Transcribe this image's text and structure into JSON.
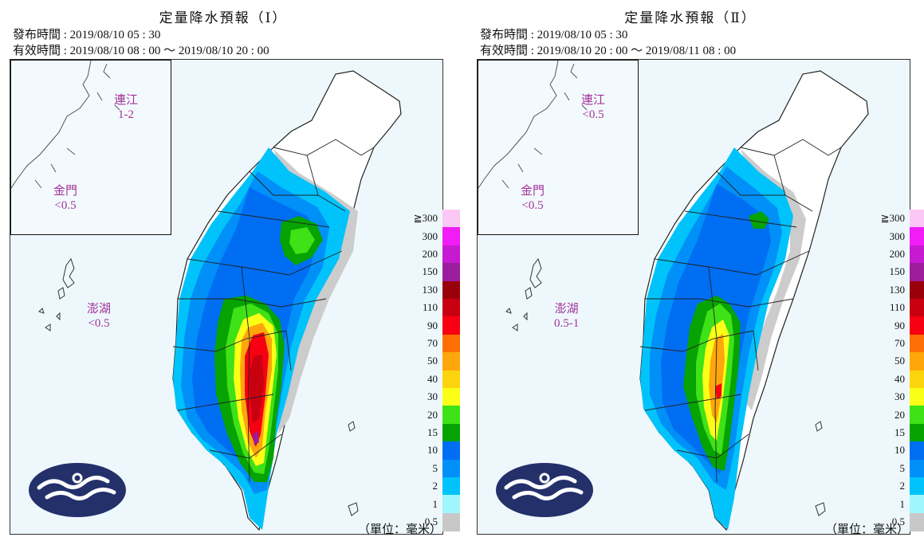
{
  "panels": [
    {
      "title": "定量降水預報（Ⅰ）",
      "issued": "發布時間 : 2019/08/10 05 : 30",
      "valid": "有效時間 : 2019/08/10 08 : 00 ～ 2019/08/10 20 : 00",
      "islands": {
        "lienchiang": {
          "name": "連江",
          "value": "1-2"
        },
        "kinmen": {
          "name": "金門",
          "value": "<0.5"
        },
        "penghu": {
          "name": "澎湖",
          "value": "<0.5"
        }
      }
    },
    {
      "title": "定量降水預報（Ⅱ）",
      "issued": "發布時間 : 2019/08/10 05 : 30",
      "valid": "有效時間 : 2019/08/10 20 : 00 ～ 2019/08/11 08 : 00",
      "islands": {
        "lienchiang": {
          "name": "連江",
          "value": "<0.5"
        },
        "kinmen": {
          "name": "金門",
          "value": "<0.5"
        },
        "penghu": {
          "name": "澎湖",
          "value": "0.5-1"
        }
      }
    }
  ],
  "legend": {
    "labels": [
      "≧300",
      "300",
      "200",
      "150",
      "130",
      "110",
      "90",
      "70",
      "50",
      "40",
      "30",
      "20",
      "15",
      "10",
      "5",
      "2",
      "1",
      "0.5"
    ],
    "colors": [
      "#fbc8f6",
      "#f21cf6",
      "#c61ad1",
      "#9b1d9d",
      "#99000a",
      "#c8000f",
      "#f60012",
      "#fd6f05",
      "#fea60b",
      "#fbd40d",
      "#fbff17",
      "#3fe117",
      "#06a302",
      "#006ef3",
      "#0090f8",
      "#00c3fb",
      "#9ff7fd",
      "#c8c8c8"
    ]
  },
  "unit": "（單位：毫米）",
  "map_colors": {
    "base": "#cccccc",
    "light": "#00c3fb",
    "blue": "#0090f8",
    "deep": "#006ef3",
    "dgreen": "#06a302",
    "green": "#3fe117",
    "yellow": "#fbff17",
    "orange": "#fea60b",
    "red": "#f60012",
    "dred": "#c8000f",
    "purple": "#9b1d9d"
  }
}
